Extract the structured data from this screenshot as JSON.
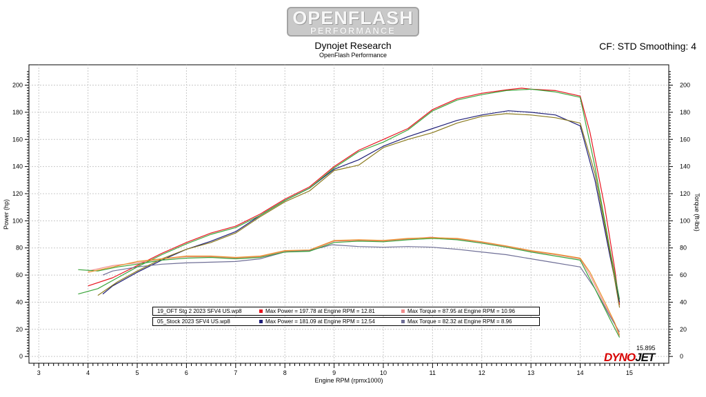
{
  "logo": {
    "line1": "OPENFLASH",
    "line2": "PERFORMANCE"
  },
  "header": {
    "title": "Dynojet Research",
    "subtitle": "OpenFlash Performance",
    "correction": "CF: STD Smoothing: 4"
  },
  "legend": [
    {
      "file": "19_OFT Stg 2 2023 SFV4 US.wp8",
      "power_swatch": "#e8141e",
      "power_text": "Max Power = 197.78 at Engine RPM = 12.81",
      "torque_swatch": "#f08c8c",
      "torque_text": "Max Torque = 87.95 at Engine RPM = 10.96"
    },
    {
      "file": "05_Stock 2023 SFV4 US.wp8",
      "power_swatch": "#1e1e78",
      "power_text": "Max Power = 181.09 at Engine RPM = 12.54",
      "torque_swatch": "#6e6e96",
      "torque_text": "Max Torque = 82.32 at Engine RPM = 8.96"
    }
  ],
  "cursor_readout": "15.895",
  "brand": {
    "part1": "DYNO",
    "part2": "JET"
  },
  "chart_data": {
    "type": "line",
    "xlabel": "Engine RPM (rpmx1000)",
    "ylabel": "Power (hp)",
    "y2label": "Torque (ft-lbs)",
    "xlim": [
      2.8,
      15.8
    ],
    "ylim": [
      -5,
      215
    ],
    "xticks": [
      3,
      4,
      5,
      6,
      7,
      8,
      9,
      10,
      11,
      12,
      13,
      14,
      15
    ],
    "yticks": [
      0,
      20,
      40,
      60,
      80,
      100,
      120,
      140,
      160,
      180,
      200
    ],
    "grid": true,
    "series": [
      {
        "group": "stage2",
        "kind": "power",
        "color": "#e8141e",
        "x": [
          4.0,
          4.5,
          5.0,
          5.5,
          6.0,
          6.5,
          7.0,
          7.5,
          8.0,
          8.5,
          9.0,
          9.5,
          10.0,
          10.5,
          11.0,
          11.5,
          12.0,
          12.5,
          12.81,
          13.0,
          13.5,
          14.0,
          14.2,
          14.5,
          14.7,
          14.8
        ],
        "y": [
          52,
          58,
          67,
          76,
          84,
          91,
          96,
          105,
          116,
          125,
          140,
          152,
          160,
          168,
          182,
          190,
          194,
          196.5,
          197.78,
          197,
          196,
          192,
          165,
          110,
          65,
          38
        ]
      },
      {
        "group": "stage2",
        "kind": "torque",
        "color": "#f08c8c",
        "x": [
          4.0,
          4.5,
          5.0,
          5.5,
          6.0,
          6.5,
          7.0,
          7.5,
          8.0,
          8.5,
          9.0,
          9.5,
          10.0,
          10.5,
          10.96,
          11.5,
          12.0,
          12.5,
          13.0,
          13.5,
          14.0,
          14.2,
          14.5,
          14.7,
          14.8
        ],
        "y": [
          63,
          67,
          69,
          72,
          73.5,
          73.5,
          72.5,
          73.5,
          77.5,
          78,
          85,
          85.5,
          85,
          86.5,
          87.95,
          86.5,
          84,
          81,
          77.5,
          75,
          72,
          60,
          38,
          24,
          15
        ]
      },
      {
        "group": "stock",
        "kind": "power",
        "color": "#1e1e78",
        "x": [
          4.3,
          4.5,
          5.0,
          5.5,
          6.0,
          6.5,
          7.0,
          7.5,
          8.0,
          8.5,
          9.0,
          9.5,
          10.0,
          10.5,
          11.0,
          11.5,
          12.0,
          12.54,
          13.0,
          13.5,
          14.0,
          14.3,
          14.6,
          14.8
        ],
        "y": [
          46,
          52,
          62,
          71,
          79,
          85,
          92,
          104,
          115,
          124,
          138,
          145,
          155,
          162,
          168,
          174,
          178,
          181.09,
          180,
          178,
          170,
          130,
          75,
          40
        ]
      },
      {
        "group": "stock",
        "kind": "torque",
        "color": "#6e6e96",
        "x": [
          4.3,
          4.5,
          5.0,
          5.5,
          6.0,
          6.5,
          7.0,
          7.5,
          8.0,
          8.5,
          8.96,
          9.5,
          10.0,
          10.5,
          11.0,
          11.5,
          12.0,
          12.5,
          13.0,
          13.5,
          14.0,
          14.3,
          14.6,
          14.8
        ],
        "y": [
          60,
          63,
          66,
          68,
          69,
          69.5,
          70,
          72,
          77,
          78,
          82.32,
          81,
          80.5,
          81,
          80.5,
          79,
          77,
          75,
          72,
          69,
          66,
          50,
          30,
          18
        ]
      },
      {
        "group": "extra",
        "kind": "power",
        "color": "#3aa53a",
        "x": [
          3.8,
          4.2,
          4.6,
          5.0,
          5.5,
          6.0,
          6.5,
          7.0,
          7.5,
          8.0,
          8.5,
          9.0,
          9.5,
          10.0,
          10.5,
          11.0,
          11.5,
          12.0,
          12.5,
          13.0,
          13.5,
          14.0,
          14.3,
          14.6,
          14.8
        ],
        "y": [
          46,
          50,
          58,
          66,
          75,
          83,
          90,
          95,
          104,
          115,
          124,
          139,
          151,
          158,
          167,
          181,
          189,
          193,
          196,
          197,
          195,
          191,
          140,
          80,
          42
        ]
      },
      {
        "group": "extra",
        "kind": "torque",
        "color": "#3aa53a",
        "x": [
          3.8,
          4.2,
          4.6,
          5.0,
          5.5,
          6.0,
          6.5,
          7.0,
          7.5,
          8.0,
          8.5,
          9.0,
          9.5,
          10.0,
          10.5,
          11.0,
          11.5,
          12.0,
          12.5,
          13.0,
          13.5,
          14.0,
          14.3,
          14.6,
          14.8
        ],
        "y": [
          64,
          63,
          66,
          68,
          71,
          72.5,
          73,
          72,
          73,
          77,
          77.5,
          84,
          85,
          84.5,
          86,
          87,
          86,
          83.5,
          80.5,
          77,
          74,
          71,
          50,
          28,
          14
        ]
      },
      {
        "group": "extra",
        "kind": "power",
        "color": "#8a7a1e",
        "x": [
          4.2,
          4.6,
          5.0,
          5.5,
          6.0,
          6.5,
          7.0,
          7.5,
          8.0,
          8.5,
          9.0,
          9.5,
          10.0,
          10.5,
          11.0,
          11.5,
          12.0,
          12.5,
          13.0,
          13.5,
          14.0,
          14.3,
          14.6,
          14.8
        ],
        "y": [
          45,
          55,
          63,
          72,
          79,
          84,
          91,
          103,
          114,
          122,
          137,
          141,
          154,
          160,
          165,
          172,
          177,
          179,
          178,
          176,
          172,
          135,
          78,
          36
        ]
      },
      {
        "group": "extra",
        "kind": "torque",
        "color": "#e89028",
        "x": [
          4.0,
          4.5,
          5.0,
          5.5,
          6.0,
          6.5,
          7.0,
          7.5,
          8.0,
          8.5,
          9.0,
          9.5,
          10.0,
          10.5,
          11.0,
          11.5,
          12.0,
          12.5,
          13.0,
          13.5,
          14.0,
          14.2,
          14.5,
          14.7,
          14.8
        ],
        "y": [
          62,
          66,
          70,
          72,
          74,
          74,
          73,
          74,
          78,
          78.5,
          85.5,
          86,
          85.5,
          87,
          87.5,
          87,
          84.5,
          81.5,
          78,
          75.5,
          72.5,
          62,
          40,
          25,
          16
        ]
      }
    ]
  }
}
